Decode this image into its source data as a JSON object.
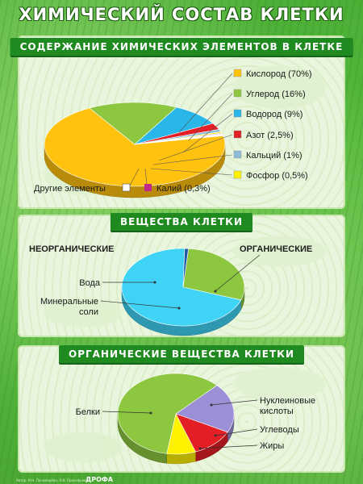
{
  "title": "ХИМИЧЕСКИЙ СОСТАВ КЛЕТКИ",
  "sections": {
    "elements": {
      "heading": "СОДЕРЖАНИЕ ХИМИЧЕСКИХ ЭЛЕМЕНТОВ В КЛЕТКЕ"
    },
    "substances": {
      "heading": "ВЕЩЕСТВА КЛЕТКИ",
      "left_label": "НЕОРГАНИЧЕСКИЕ",
      "right_label": "ОРГАНИЧЕСКИЕ"
    },
    "organic": {
      "heading": "ОРГАНИЧЕСКИЕ ВЕЩЕСТВА КЛЕТКИ"
    }
  },
  "footer": {
    "credits": "Автор: И.Н. Пономарёва, Л.И. Прокофьева",
    "brand": "ДРОФА"
  },
  "chart_data": [
    {
      "type": "pie",
      "title": "СОДЕРЖАНИЕ ХИМИЧЕСКИХ ЭЛЕМЕНТОВ В КЛЕТКЕ",
      "legend_position": "right",
      "series": [
        {
          "label": "Кислород (70%)",
          "value": 70,
          "color": "#ffc20e"
        },
        {
          "label": "Углерод (16%)",
          "value": 16,
          "color": "#8dc63f"
        },
        {
          "label": "Водород (9%)",
          "value": 9,
          "color": "#29b6e8"
        },
        {
          "label": "Азот (2,5%)",
          "value": 2.5,
          "color": "#e31e24"
        },
        {
          "label": "Кальций (1%)",
          "value": 1,
          "color": "#8fbdd8"
        },
        {
          "label": "Фосфор (0,5%)",
          "value": 0.5,
          "color": "#fff200"
        },
        {
          "label": "Калий (0,3%)",
          "value": 0.3,
          "color": "#c0288a"
        },
        {
          "label": "Другие элементы",
          "value": 0.7,
          "color": "#ffffff"
        }
      ]
    },
    {
      "type": "pie",
      "title": "ВЕЩЕСТВА КЛЕТКИ",
      "series": [
        {
          "label": "Вода",
          "value": 70,
          "color": "#3fd3f5"
        },
        {
          "label": "Минеральные соли",
          "value": 1,
          "color": "#1e5aa8"
        },
        {
          "label": "ОРГАНИЧЕСКИЕ",
          "value": 29,
          "color": "#8dc63f"
        }
      ]
    },
    {
      "type": "pie",
      "title": "ОРГАНИЧЕСКИЕ ВЕЩЕСТВА КЛЕТКИ",
      "series": [
        {
          "label": "Белки",
          "value": 60,
          "color": "#8dc63f"
        },
        {
          "label": "Нуклеиновые кислоты",
          "value": 20,
          "color": "#9b8fd6"
        },
        {
          "label": "Углеводы",
          "value": 12,
          "color": "#e31e24"
        },
        {
          "label": "Жиры",
          "value": 8,
          "color": "#fff200"
        }
      ]
    }
  ]
}
